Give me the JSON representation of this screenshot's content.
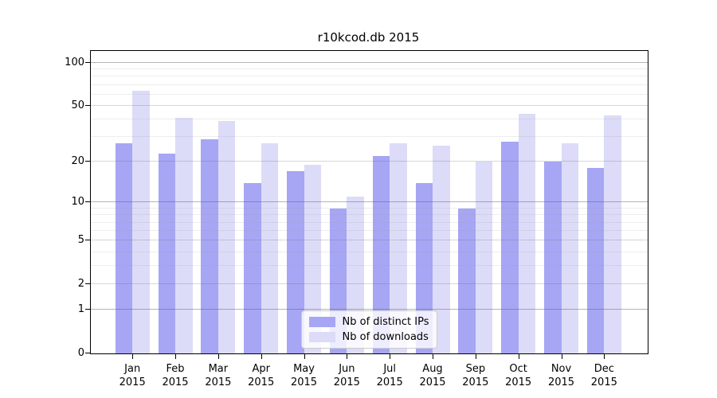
{
  "chart_data": {
    "type": "bar",
    "title": "r10kcod.db 2015",
    "year": "2015",
    "months": [
      "Jan",
      "Feb",
      "Mar",
      "Apr",
      "May",
      "Jun",
      "Jul",
      "Aug",
      "Sep",
      "Oct",
      "Nov",
      "Dec"
    ],
    "series": [
      {
        "name": "Nb of distinct IPs",
        "color": "#a6a6f4",
        "values": [
          27,
          23,
          29,
          14,
          17,
          9,
          22,
          14,
          9,
          28,
          20,
          18
        ]
      },
      {
        "name": "Nb of downloads",
        "color": "#dcdcf8",
        "values": [
          64,
          41,
          39,
          27,
          19,
          11,
          27,
          26,
          20,
          44,
          27,
          43
        ]
      }
    ],
    "yscale": "log1p",
    "ylim": [
      0,
      121
    ],
    "y_tick_values": [
      0,
      1,
      2,
      5,
      10,
      20,
      50,
      100
    ],
    "y_power_gridlines": [
      1,
      10,
      100
    ],
    "y_mid_gridlines": [
      2,
      5,
      20,
      50
    ],
    "y_minor_gridlines": [
      3,
      4,
      6,
      7,
      8,
      9,
      30,
      40,
      60,
      70,
      80,
      90
    ],
    "grid": true,
    "legend_position": "lower center",
    "xlabel": "",
    "ylabel": ""
  }
}
